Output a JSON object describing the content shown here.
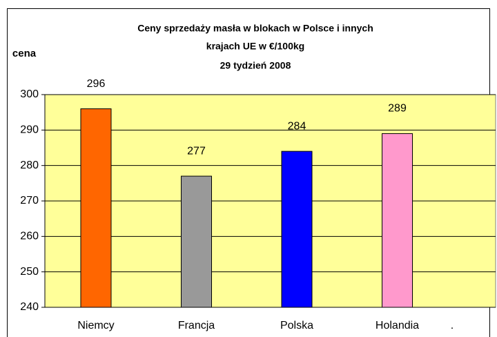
{
  "chart_data": {
    "type": "bar",
    "title": [
      "Ceny sprzedaży masła w blokach w Polsce i  innych",
      "krajach UE w €/100kg",
      "29 tydzień 2008"
    ],
    "y_label": "cena",
    "categories": [
      "Niemcy",
      "Francja",
      "Polska",
      "Holandia"
    ],
    "values": [
      296,
      277,
      284,
      289
    ],
    "colors": [
      "#ff6600",
      "#999999",
      "#0000ff",
      "#ff99cc"
    ],
    "annotation": ".",
    "ylim": [
      240,
      300
    ],
    "yticks": [
      240,
      250,
      260,
      270,
      280,
      290,
      300
    ],
    "grid": true
  }
}
